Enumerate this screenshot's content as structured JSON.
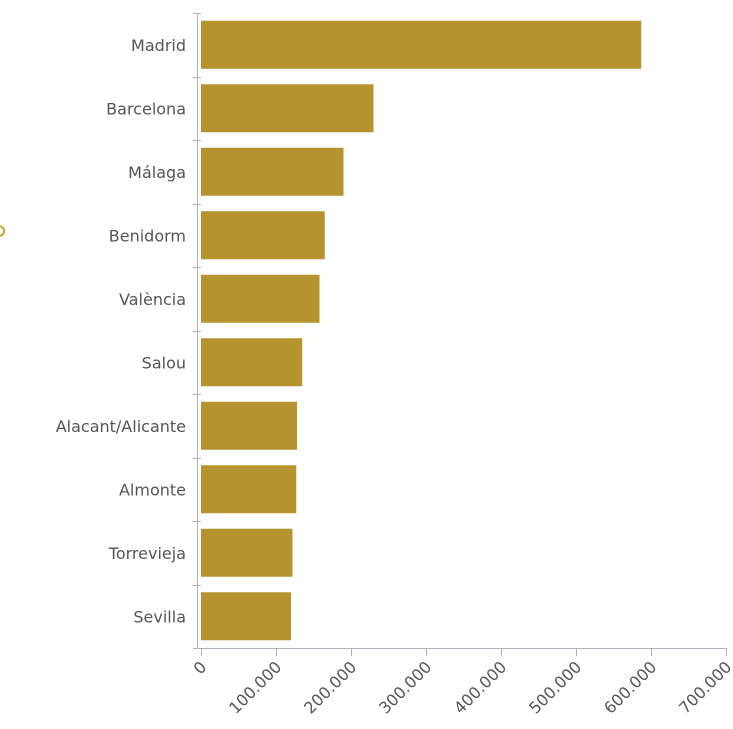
{
  "colors": {
    "bar": "#B5932E",
    "axis": "#b0b0c0",
    "text": "#555555",
    "marker": "#C9A227"
  },
  "chart_data": {
    "type": "bar",
    "orientation": "horizontal",
    "categories": [
      "Madrid",
      "Barcelona",
      "Málaga",
      "Benidorm",
      "València",
      "Salou",
      "Alacant/Alicante",
      "Almonte",
      "Torrevieja",
      "Sevilla"
    ],
    "values": [
      587000,
      230000,
      190000,
      165000,
      158000,
      135000,
      128000,
      127000,
      122000,
      120000
    ],
    "title": "",
    "xlabel": "",
    "ylabel": "",
    "xlim": [
      0,
      700000
    ],
    "x_ticks": [
      0,
      100000,
      200000,
      300000,
      400000,
      500000,
      600000,
      700000
    ],
    "x_tick_labels": [
      "0",
      "100.000",
      "200.000",
      "300.000",
      "400.000",
      "500.000",
      "600.000",
      "700.000"
    ],
    "grid": false,
    "legend": "none"
  }
}
